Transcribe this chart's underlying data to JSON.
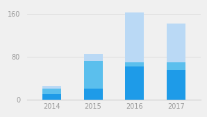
{
  "years": [
    "2014",
    "2015",
    "2016",
    "2017"
  ],
  "segment1": [
    10,
    20,
    62,
    55
  ],
  "segment2": [
    10,
    52,
    8,
    15
  ],
  "segment3": [
    5,
    13,
    92,
    72
  ],
  "color1": "#1E9BE8",
  "color2": "#5BBFED",
  "color3": "#BAD9F5",
  "ylim": [
    0,
    175
  ],
  "yticks": [
    0,
    80,
    160
  ],
  "background_color": "#f0f0f0",
  "bar_width": 0.45,
  "tick_fontsize": 7,
  "tick_color": "#999999",
  "grid_color": "#d8d8d8",
  "spine_color": "#cccccc"
}
